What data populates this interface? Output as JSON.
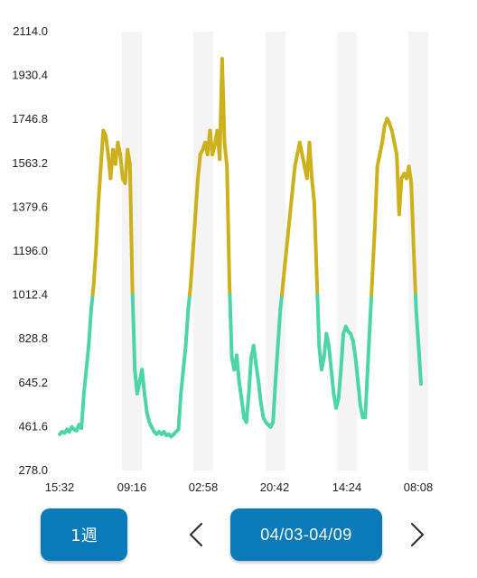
{
  "chart_data": {
    "type": "line",
    "y_ticks": [
      "2114.0",
      "1930.4",
      "1746.8",
      "1563.2",
      "1379.6",
      "1196.0",
      "1012.4",
      "828.8",
      "645.2",
      "461.6",
      "278.0"
    ],
    "x_ticks": [
      "15:32",
      "09:16",
      "02:58",
      "20:42",
      "14:24",
      "08:08"
    ],
    "ylim": [
      278.0,
      2114.0
    ],
    "threshold": 1012.4,
    "colors": {
      "above": "#cdb11c",
      "below": "#4dd4a8",
      "band": "#f4f4f4"
    },
    "values": [
      430,
      440,
      435,
      450,
      440,
      460,
      450,
      445,
      470,
      455,
      600,
      700,
      800,
      950,
      1050,
      1200,
      1400,
      1550,
      1700,
      1680,
      1600,
      1500,
      1620,
      1560,
      1650,
      1600,
      1500,
      1480,
      1620,
      1560,
      1040,
      700,
      600,
      650,
      700,
      600,
      520,
      480,
      460,
      440,
      430,
      440,
      430,
      440,
      425,
      430,
      420,
      430,
      440,
      450,
      600,
      700,
      800,
      950,
      1050,
      1200,
      1350,
      1500,
      1600,
      1620,
      1650,
      1600,
      1700,
      1600,
      1640,
      1700,
      1580,
      2000,
      1650,
      1550,
      1070,
      750,
      700,
      760,
      650,
      580,
      500,
      480,
      600,
      750,
      800,
      720,
      650,
      560,
      500,
      480,
      470,
      460,
      480,
      650,
      800,
      950,
      1050,
      1150,
      1250,
      1350,
      1450,
      1550,
      1600,
      1650,
      1600,
      1550,
      1500,
      1650,
      1500,
      1400,
      1100,
      800,
      700,
      750,
      850,
      800,
      700,
      600,
      540,
      580,
      700,
      850,
      880,
      860,
      850,
      820,
      750,
      650,
      550,
      500,
      500,
      700,
      900,
      1100,
      1300,
      1550,
      1600,
      1650,
      1720,
      1750,
      1730,
      1700,
      1650,
      1600,
      1350,
      1500,
      1520,
      1500,
      1550,
      1480,
      1200,
      950,
      800,
      640
    ]
  },
  "controls": {
    "period_label": "1週",
    "range_label": "04/03-04/09",
    "prev_icon": "chevron-left-icon",
    "next_icon": "chevron-right-icon"
  }
}
